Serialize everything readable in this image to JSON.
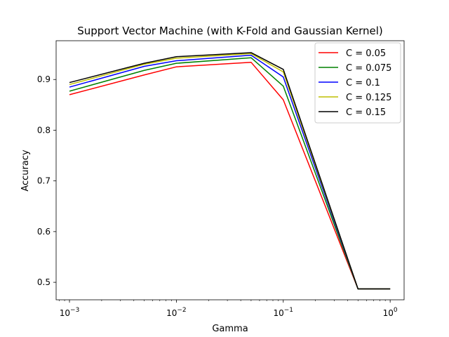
{
  "chart_data": {
    "type": "line",
    "title": "Support Vector Machine (with K-Fold and Gaussian Kernel)",
    "xlabel": "Gamma",
    "ylabel": "Accuracy",
    "x_scale": "log",
    "x": [
      0.001,
      0.005,
      0.01,
      0.05,
      0.1,
      0.5,
      1.0
    ],
    "xlim": [
      0.00075,
      1.35
    ],
    "ylim": [
      0.4655,
      0.9765
    ],
    "xticks": [
      {
        "value": 0.001,
        "base": "10",
        "exp": "−3"
      },
      {
        "value": 0.01,
        "base": "10",
        "exp": "−2"
      },
      {
        "value": 0.1,
        "base": "10",
        "exp": "−1"
      },
      {
        "value": 1.0,
        "base": "10",
        "exp": "0"
      }
    ],
    "yticks": [
      {
        "value": 0.5,
        "label": "0.5"
      },
      {
        "value": 0.6,
        "label": "0.6"
      },
      {
        "value": 0.7,
        "label": "0.7"
      },
      {
        "value": 0.8,
        "label": "0.8"
      },
      {
        "value": 0.9,
        "label": "0.9"
      }
    ],
    "legend_position": "top-right",
    "grid": false,
    "series": [
      {
        "name": "C = 0.05",
        "color": "#ff0000",
        "values": [
          0.87,
          0.909,
          0.925,
          0.934,
          0.86,
          0.487,
          0.487
        ]
      },
      {
        "name": "C = 0.075",
        "color": "#008000",
        "values": [
          0.877,
          0.918,
          0.932,
          0.943,
          0.887,
          0.487,
          0.487
        ]
      },
      {
        "name": "C = 0.1",
        "color": "#0000ff",
        "values": [
          0.885,
          0.926,
          0.937,
          0.948,
          0.905,
          0.487,
          0.487
        ]
      },
      {
        "name": "C = 0.125",
        "color": "#bfbf00",
        "values": [
          0.89,
          0.93,
          0.942,
          0.951,
          0.915,
          0.487,
          0.487
        ]
      },
      {
        "name": "C = 0.15",
        "color": "#000000",
        "values": [
          0.894,
          0.932,
          0.945,
          0.953,
          0.92,
          0.487,
          0.487
        ]
      }
    ]
  }
}
